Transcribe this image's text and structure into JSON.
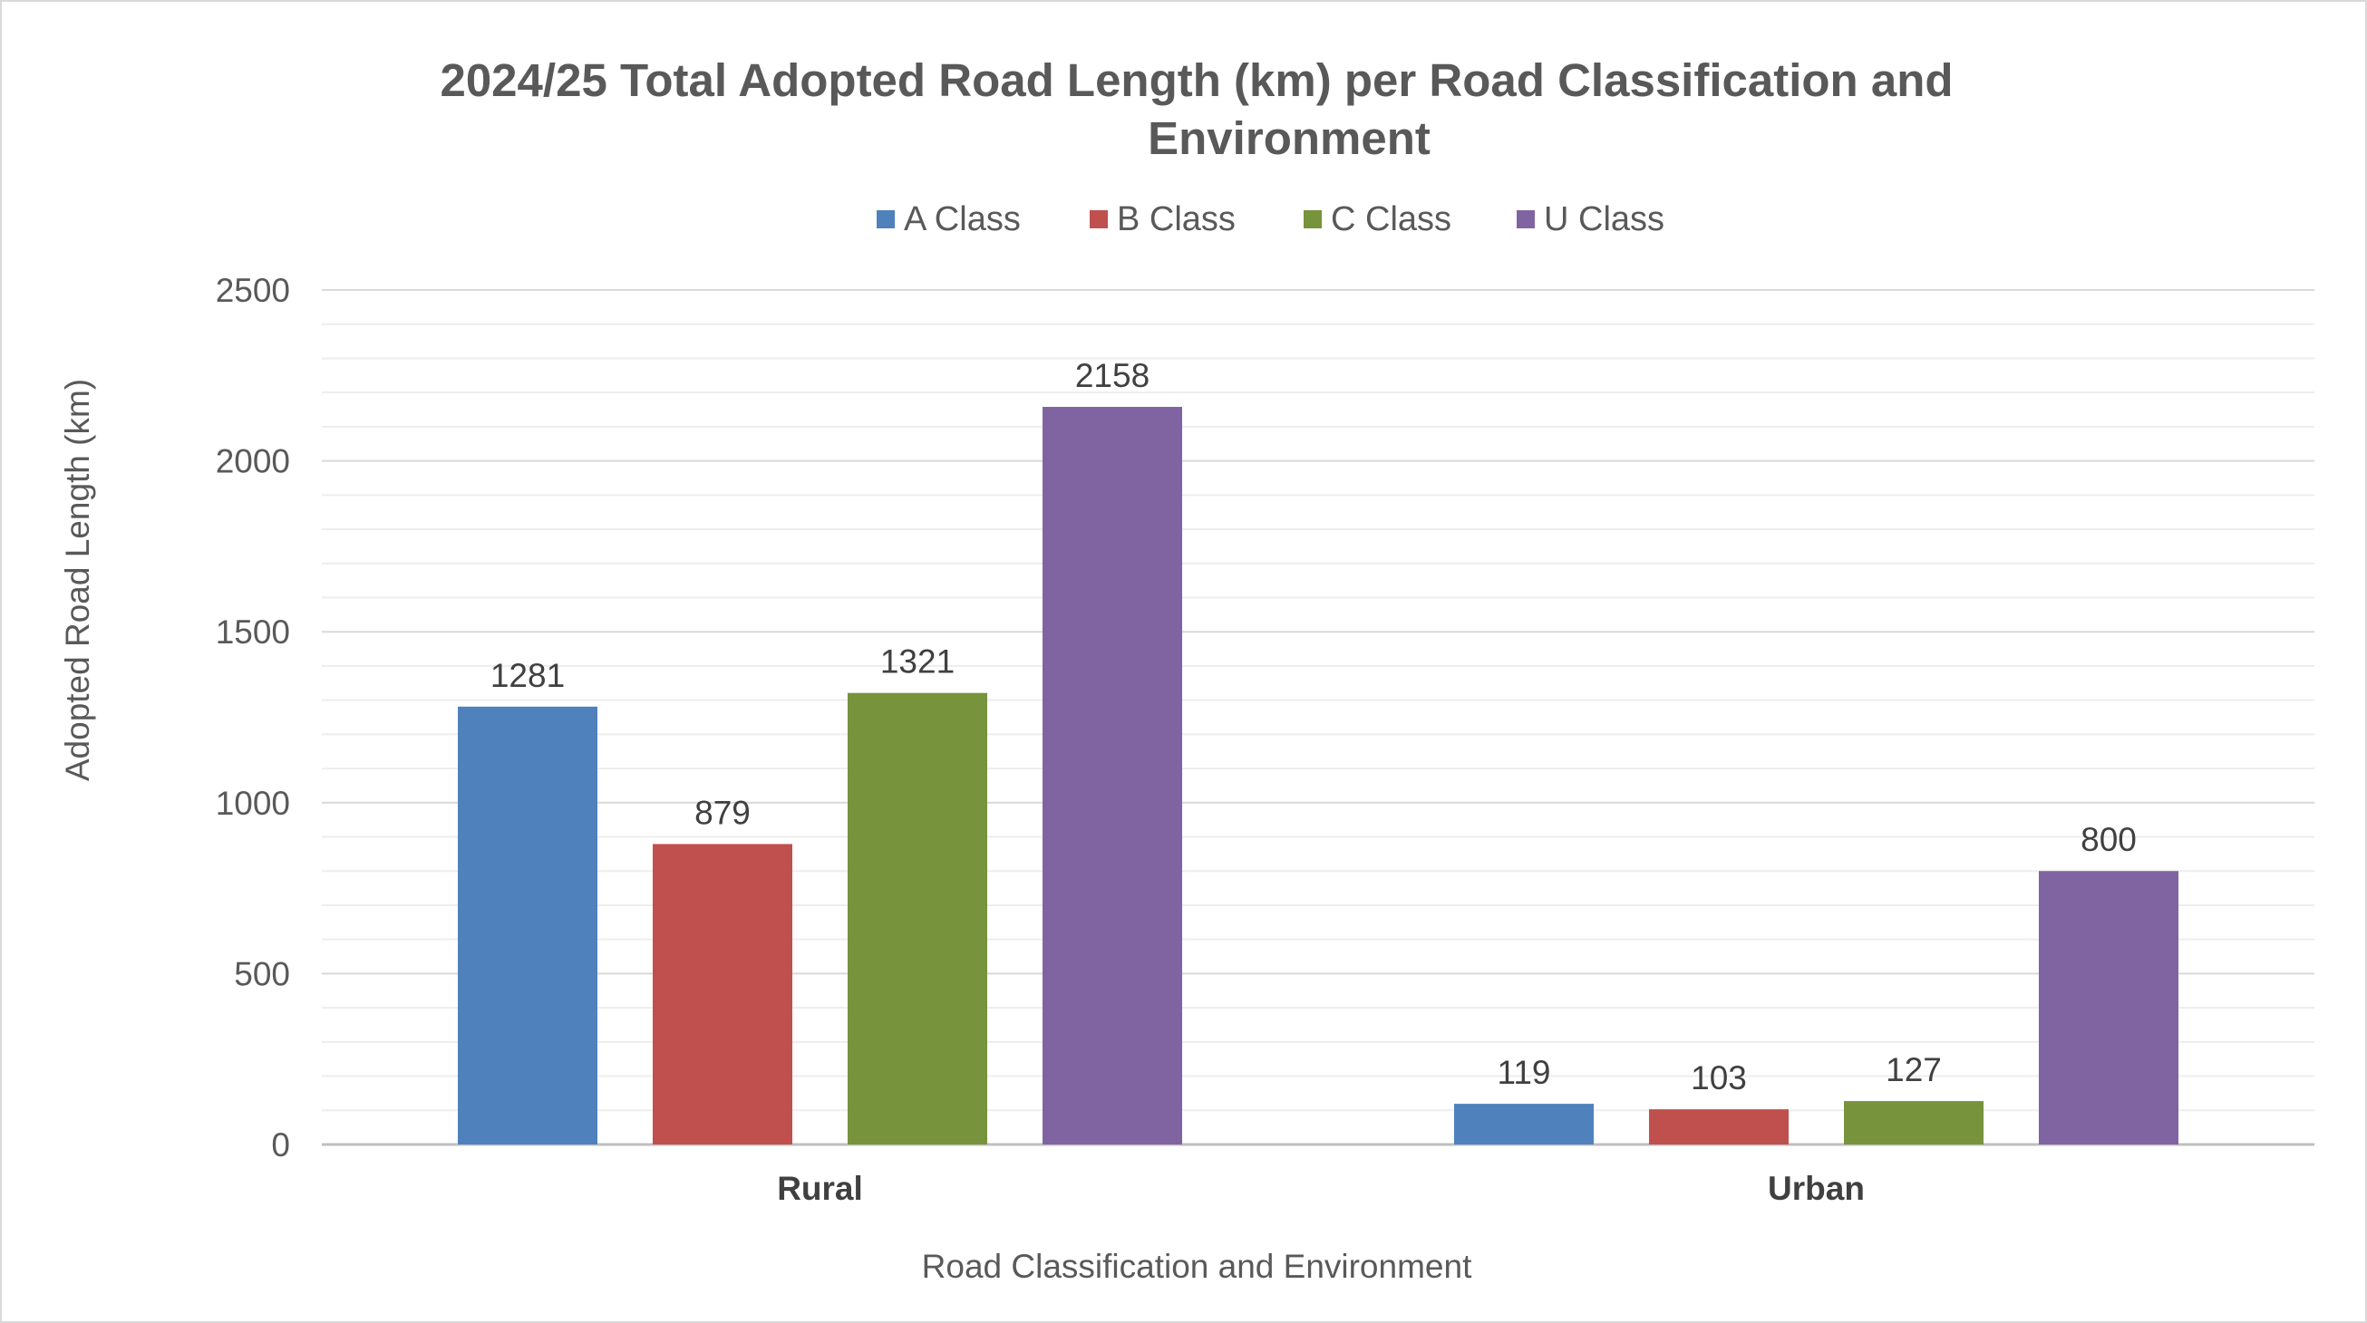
{
  "chart_data": {
    "type": "bar",
    "title_line1": "2024/25 Total Adopted Road Length (km) per Road Classification and",
    "title_line2": "Environment",
    "categories": [
      "Rural",
      "Urban"
    ],
    "series": [
      {
        "name": "A Class",
        "color": "#4f81bd",
        "values": [
          1281,
          119
        ]
      },
      {
        "name": "B Class",
        "color": "#c0504d",
        "values": [
          879,
          103
        ]
      },
      {
        "name": "C Class",
        "color": "#77933c",
        "values": [
          1321,
          127
        ]
      },
      {
        "name": "U Class",
        "color": "#8064a2",
        "values": [
          2158,
          800
        ]
      }
    ],
    "xlabel": "Road Classification and Environment",
    "ylabel": "Adopted Road Length (km)",
    "ylim": [
      0,
      2500
    ],
    "yticks": [
      0,
      500,
      1000,
      1500,
      2000,
      2500
    ],
    "minor_gridlines_step": 100,
    "grid": true,
    "legend_position": "top"
  }
}
